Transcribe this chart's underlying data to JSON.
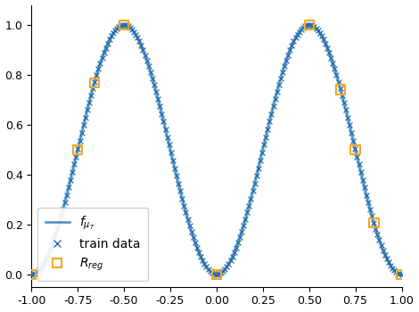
{
  "title": "",
  "xlim": [
    -1.0,
    1.0
  ],
  "ylim": [
    -0.05,
    1.08
  ],
  "xlabel": "",
  "ylabel": "",
  "line_color": "#4c8cbf",
  "line_color_light": "#a8d4f0",
  "train_marker_color": "#2b6ca8",
  "reg_marker_color": "#f5a623",
  "legend_labels": [
    "$f_{\\mu_T}$",
    "train data",
    "$R_{reg}$"
  ],
  "xticks": [
    -1.0,
    -0.75,
    -0.5,
    -0.25,
    0.0,
    0.25,
    0.5,
    0.75,
    1.0
  ],
  "yticks": [
    0.0,
    0.2,
    0.4,
    0.6,
    0.8,
    1.0
  ],
  "background_color": "#ffffff",
  "n_line_points": 600,
  "n_train_points": 200,
  "reg_x": [
    -1.0,
    -0.75,
    -0.66,
    -0.5,
    0.0,
    0.5,
    0.67,
    0.75,
    0.85,
    1.0
  ],
  "figsize": [
    4.7,
    3.5
  ],
  "dpi": 100
}
